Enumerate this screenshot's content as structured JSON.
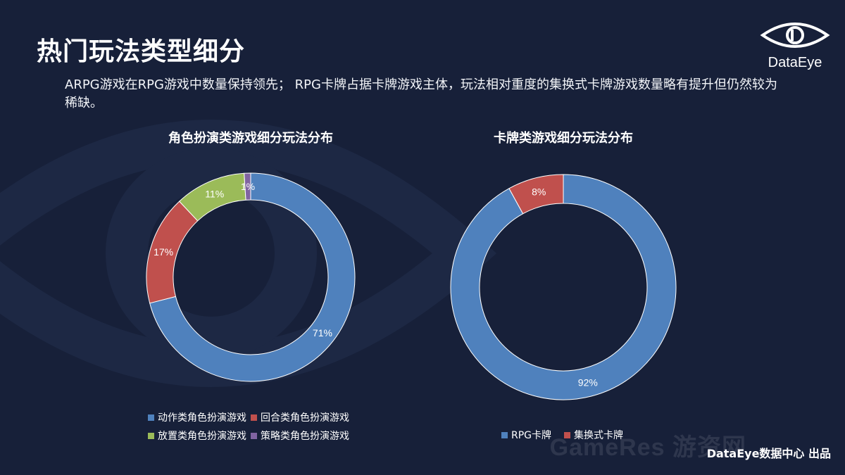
{
  "page": {
    "title": "热门玩法类型细分",
    "subtitle": "ARPG游戏在RPG游戏中数量保持领先； RPG卡牌占据卡牌游戏主体，玩法相对重度的集换式卡牌游戏数量略有提升但仍然较为稀缺。",
    "logo_text": "DataEye",
    "footer": "DataEye数据中心 出品",
    "watermark": "GameRes 游资网"
  },
  "chart_data": [
    {
      "type": "pie",
      "title": "角色扮演类游戏细分玩法分布",
      "categories": [
        "动作类角色扮演游戏",
        "回合类角色扮演游戏",
        "放置类角色扮演游戏",
        "策略类角色扮演游戏"
      ],
      "values": [
        71,
        17,
        11,
        1
      ],
      "labels": [
        "71%",
        "17%",
        "11%",
        "1%"
      ],
      "colors": [
        "#4f81bd",
        "#c0504d",
        "#9bbb59",
        "#8064a2"
      ],
      "legend": "bottom"
    },
    {
      "type": "pie",
      "title": "卡牌类游戏细分玩法分布",
      "categories": [
        "RPG卡牌",
        "集换式卡牌"
      ],
      "values": [
        92,
        8
      ],
      "labels": [
        "92%",
        "8%"
      ],
      "colors": [
        "#4f81bd",
        "#c0504d"
      ],
      "legend": "bottom"
    }
  ]
}
